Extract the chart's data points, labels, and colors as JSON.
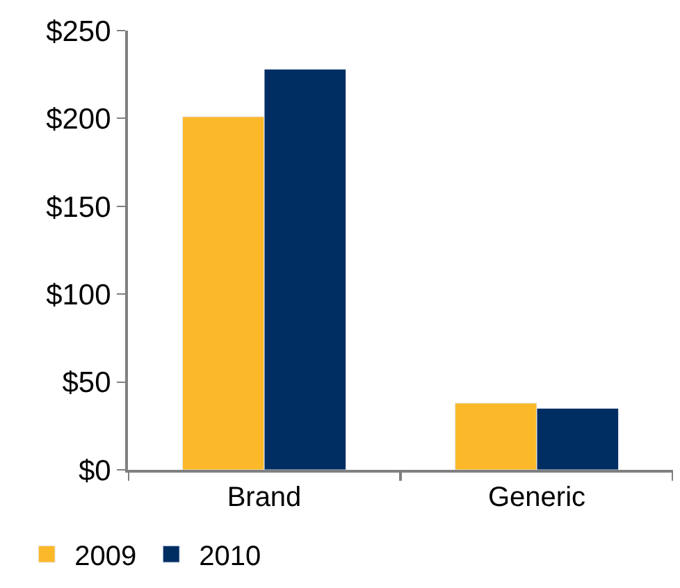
{
  "chart_data": {
    "type": "bar",
    "categories": [
      "Brand",
      "Generic"
    ],
    "series": [
      {
        "name": "2009",
        "color": "#fbb829",
        "values": [
          201,
          38
        ]
      },
      {
        "name": "2010",
        "color": "#002d62",
        "values": [
          228,
          35
        ]
      }
    ],
    "ylim": [
      0,
      250
    ],
    "yticks": [
      {
        "value": 0,
        "label": "$0"
      },
      {
        "value": 50,
        "label": "$50"
      },
      {
        "value": 100,
        "label": "$100"
      },
      {
        "value": 150,
        "label": "$150"
      },
      {
        "value": 200,
        "label": "$200"
      },
      {
        "value": 250,
        "label": "$250"
      }
    ],
    "legend": "bottom left"
  }
}
